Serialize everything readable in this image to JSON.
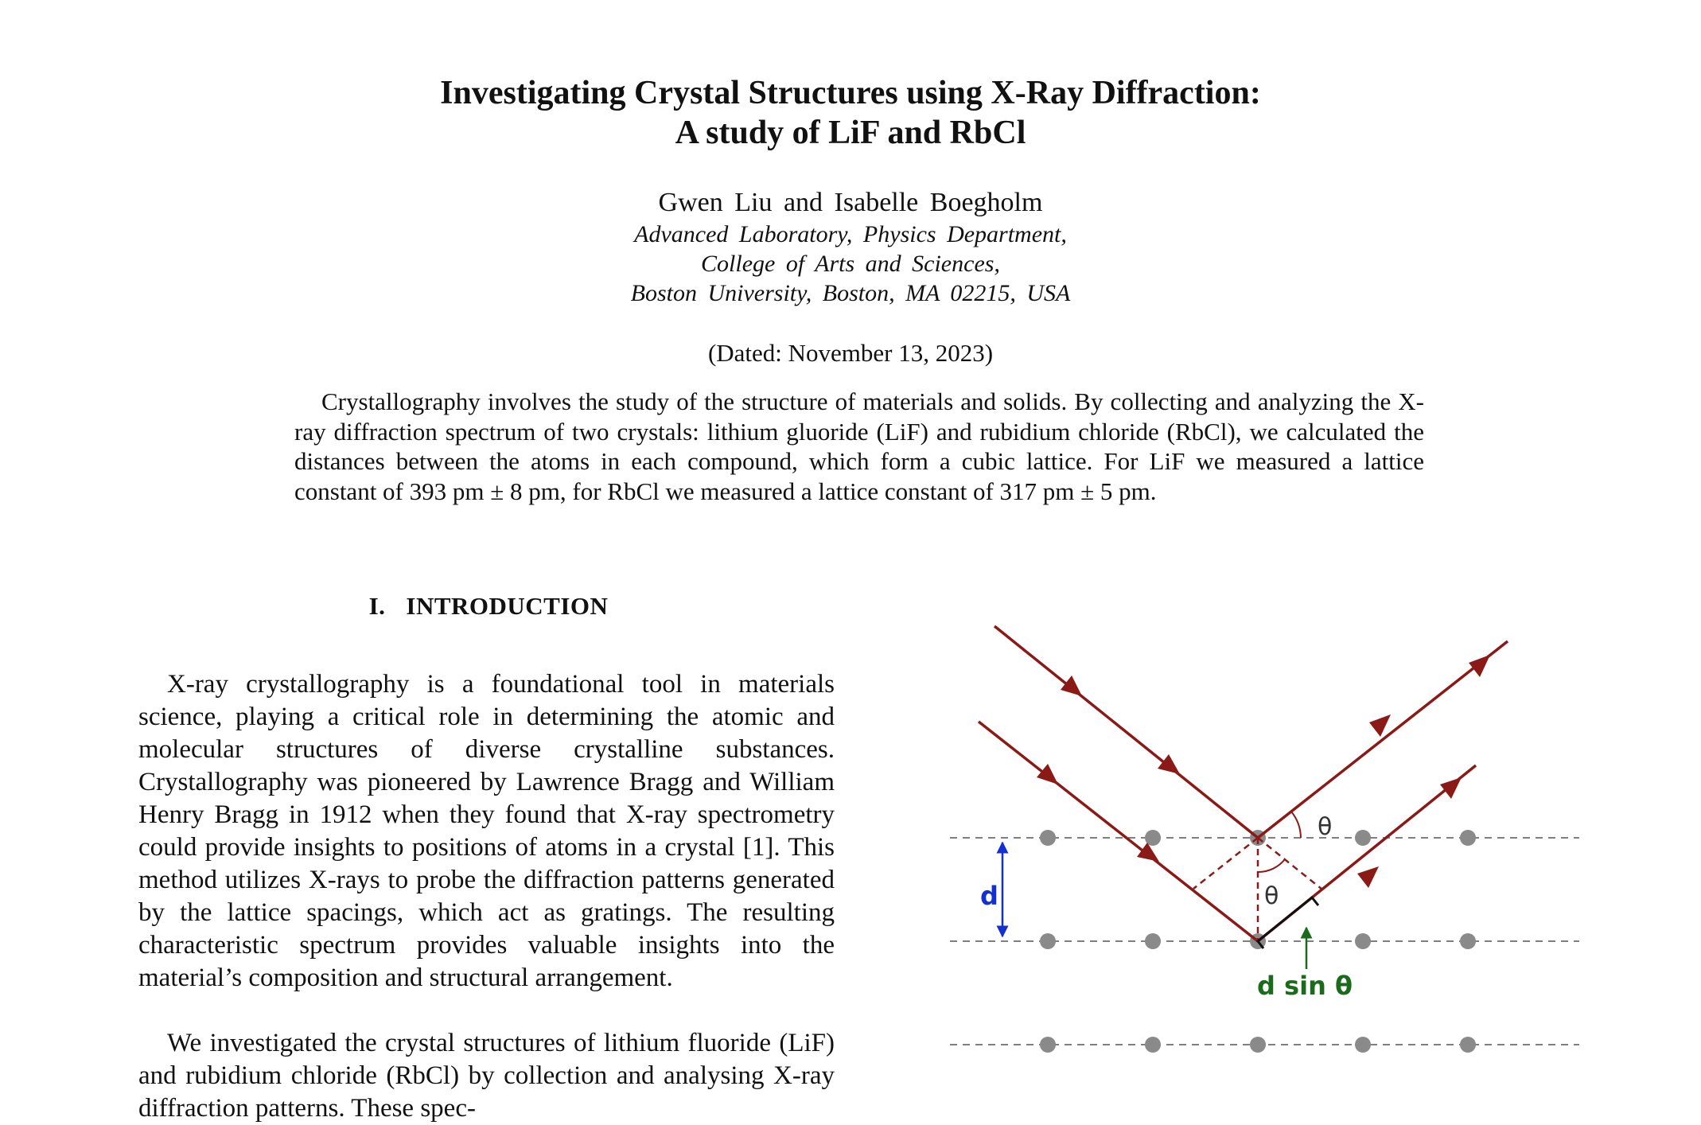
{
  "paper": {
    "title_line1": "Investigating Crystal Structures using X-Ray Diffraction:",
    "title_line2": "A study of LiF and RbCl",
    "authors": "Gwen Liu and Isabelle Boegholm",
    "affiliation_line1": "Advanced Laboratory, Physics Department,",
    "affiliation_line2": "College of Arts and Sciences,",
    "affiliation_line3": "Boston University, Boston, MA 02215, USA",
    "dated": "(Dated: November 13, 2023)",
    "abstract": "Crystallography involves the study of the structure of materials and solids. By collecting and analyzing the X-ray diffraction spectrum of two crystals: lithium gluoride (LiF) and rubidium chloride (RbCl), we calculated the distances between the atoms in each compound, which form a cubic lattice. For LiF we measured a lattice constant of 393 pm ± 8 pm, for RbCl we measured a lattice constant of 317 pm ± 5 pm."
  },
  "introduction": {
    "section_number": "I.",
    "section_title": "INTRODUCTION",
    "paragraph1": "X-ray crystallography is a foundational tool in materials science, playing a critical role in determining the atomic and molecular structures of diverse crystalline substances. Crystallography was pioneered by Lawrence Bragg and William Henry Bragg in 1912 when they found that X-ray spectrometry could provide insights to positions of atoms in a crystal [1]. This method utilizes X-rays to probe the diffraction patterns generated by the lattice spacings, which act as gratings. The resulting characteristic spectrum provides valuable insights into the material’s composition and structural arrangement.",
    "paragraph2": "We investigated the crystal structures of lithium fluoride (LiF) and rubidium chloride (RbCl) by collection and analysing X-ray diffraction patterns. These spec-"
  },
  "figure": {
    "label_d": "d",
    "label_theta": "θ",
    "label_dsin": "d sin θ",
    "colors": {
      "ray": "#8b1a17",
      "atom": "#8a8a8a",
      "plane": "#808080",
      "d_arrow": "#1430d0",
      "dsin_label": "#1c6b1c"
    }
  }
}
